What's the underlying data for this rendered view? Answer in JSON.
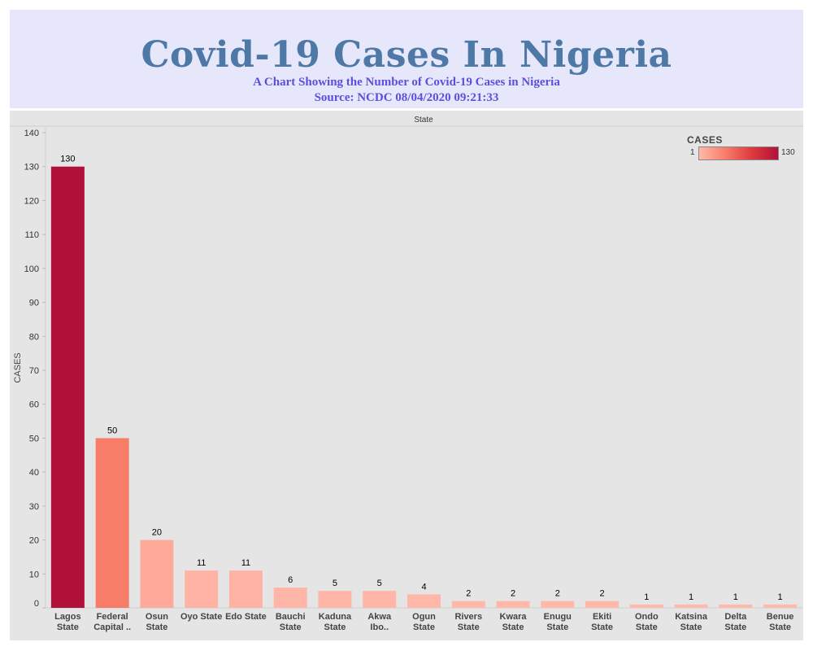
{
  "header": {
    "title": "Covid-19 Cases In Nigeria",
    "subtitle": "A Chart Showing the Number of Covid-19 Cases in Nigeria",
    "source": "Source: NCDC 08/04/2020 09:21:33"
  },
  "legend": {
    "title": "CASES",
    "min_label": "1",
    "max_label": "130",
    "color_low": "#ffb9ab",
    "color_high": "#b01139"
  },
  "colors": {
    "background_header": "#e7e7fb",
    "title": "#4e79a7",
    "subtitle": "#5a4fde",
    "panel": "#e5e5e5"
  },
  "chart_data": {
    "type": "bar",
    "title": "Covid-19 Cases In Nigeria",
    "column_header": "State",
    "ylabel": "CASES",
    "ylim": [
      0,
      140
    ],
    "yticks": [
      0,
      10,
      20,
      30,
      40,
      50,
      60,
      70,
      80,
      90,
      100,
      110,
      120,
      130,
      140
    ],
    "grid": false,
    "legend_position": "top-right",
    "categories": [
      [
        "Lagos",
        "State"
      ],
      [
        "Federal",
        "Capital .."
      ],
      [
        "Osun",
        "State"
      ],
      [
        "Oyo State"
      ],
      [
        "Edo State"
      ],
      [
        "Bauchi",
        "State"
      ],
      [
        "Kaduna",
        "State"
      ],
      [
        "Akwa",
        "Ibo.."
      ],
      [
        "Ogun",
        "State"
      ],
      [
        "Rivers",
        "State"
      ],
      [
        "Kwara",
        "State"
      ],
      [
        "Enugu",
        "State"
      ],
      [
        "Ekiti",
        "State"
      ],
      [
        "Ondo",
        "State"
      ],
      [
        "Katsina",
        "State"
      ],
      [
        "Delta",
        "State"
      ],
      [
        "Benue",
        "State"
      ]
    ],
    "values": [
      130,
      50,
      20,
      11,
      11,
      6,
      5,
      5,
      4,
      2,
      2,
      2,
      2,
      1,
      1,
      1,
      1
    ],
    "colors": [
      "#b01139",
      "#f77d68",
      "#fdaa9a",
      "#ffb3a4",
      "#ffb3a4",
      "#ffb5a7",
      "#ffb6a8",
      "#ffb6a8",
      "#ffb7a9",
      "#ffb8aa",
      "#ffb8aa",
      "#ffb8aa",
      "#ffb8aa",
      "#ffb9ab",
      "#ffb9ab",
      "#ffb9ab",
      "#ffb9ab"
    ]
  }
}
